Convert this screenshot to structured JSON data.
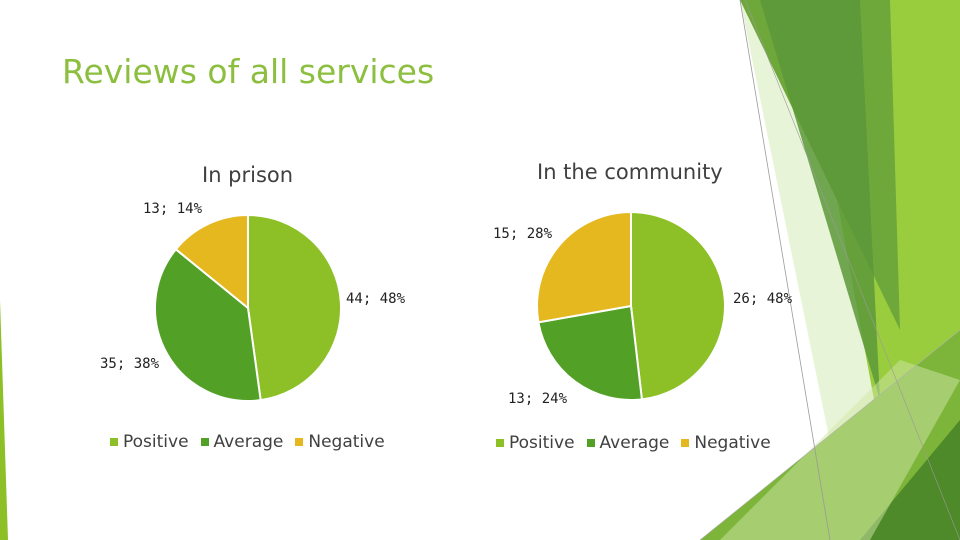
{
  "slide": {
    "title": "Reviews of all services"
  },
  "colors": {
    "positive": "#8dc026",
    "average": "#52a025",
    "negative": "#e5b820",
    "title": "#8cbf3f",
    "deco_dark": "#4f8a2a",
    "deco_mid": "#6fa83a",
    "deco_light": "#9acd3e",
    "deco_pale": "#d5eab4"
  },
  "chart_data": [
    {
      "type": "pie",
      "title": "In prison",
      "categories": [
        "Positive",
        "Average",
        "Negative"
      ],
      "values": [
        44,
        35,
        13
      ],
      "percents": [
        48,
        38,
        14
      ],
      "data_labels": [
        "44; 48%",
        "35; 38%",
        "13; 14%"
      ],
      "legend": [
        "Positive",
        "Average",
        "Negative"
      ],
      "legend_position": "bottom"
    },
    {
      "type": "pie",
      "title": "In the community",
      "categories": [
        "Positive",
        "Average",
        "Negative"
      ],
      "values": [
        26,
        13,
        15
      ],
      "percents": [
        48,
        24,
        28
      ],
      "data_labels": [
        "26; 48%",
        "13; 24%",
        "15; 28%"
      ],
      "legend": [
        "Positive",
        "Average",
        "Negative"
      ],
      "legend_position": "bottom"
    }
  ]
}
